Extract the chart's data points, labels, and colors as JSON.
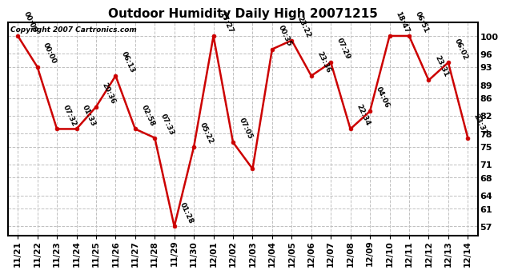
{
  "title": "Outdoor Humidity Daily High 20071215",
  "copyright": "Copyright 2007 Cartronics.com",
  "x_labels": [
    "11/21",
    "11/22",
    "11/23",
    "11/24",
    "11/25",
    "11/26",
    "11/27",
    "11/28",
    "11/29",
    "11/30",
    "12/01",
    "12/02",
    "12/03",
    "12/04",
    "12/05",
    "12/06",
    "12/07",
    "12/08",
    "12/09",
    "12/10",
    "12/11",
    "12/12",
    "12/13",
    "12/14"
  ],
  "y_values": [
    100,
    93,
    79,
    79,
    84,
    91,
    79,
    77,
    57,
    75,
    100,
    76,
    70,
    97,
    99,
    91,
    94,
    79,
    83,
    100,
    100,
    90,
    94,
    77
  ],
  "point_labels": [
    "00:00",
    "00:00",
    "07:32",
    "01:33",
    "20:36",
    "06:13",
    "02:58",
    "07:33",
    "01:28",
    "05:22",
    "17:27",
    "07:05",
    "",
    "00:35",
    "23:22",
    "23:36",
    "07:29",
    "22:34",
    "04:06",
    "18:47",
    "06:51",
    "23:31",
    "06:02",
    "23:31"
  ],
  "line_color": "#cc0000",
  "marker_color": "#cc0000",
  "bg_color": "#ffffff",
  "grid_color": "#c0c0c0",
  "ylim_min": 55,
  "ylim_max": 103,
  "yticks": [
    57,
    61,
    64,
    68,
    71,
    75,
    78,
    82,
    86,
    89,
    93,
    96,
    100
  ]
}
